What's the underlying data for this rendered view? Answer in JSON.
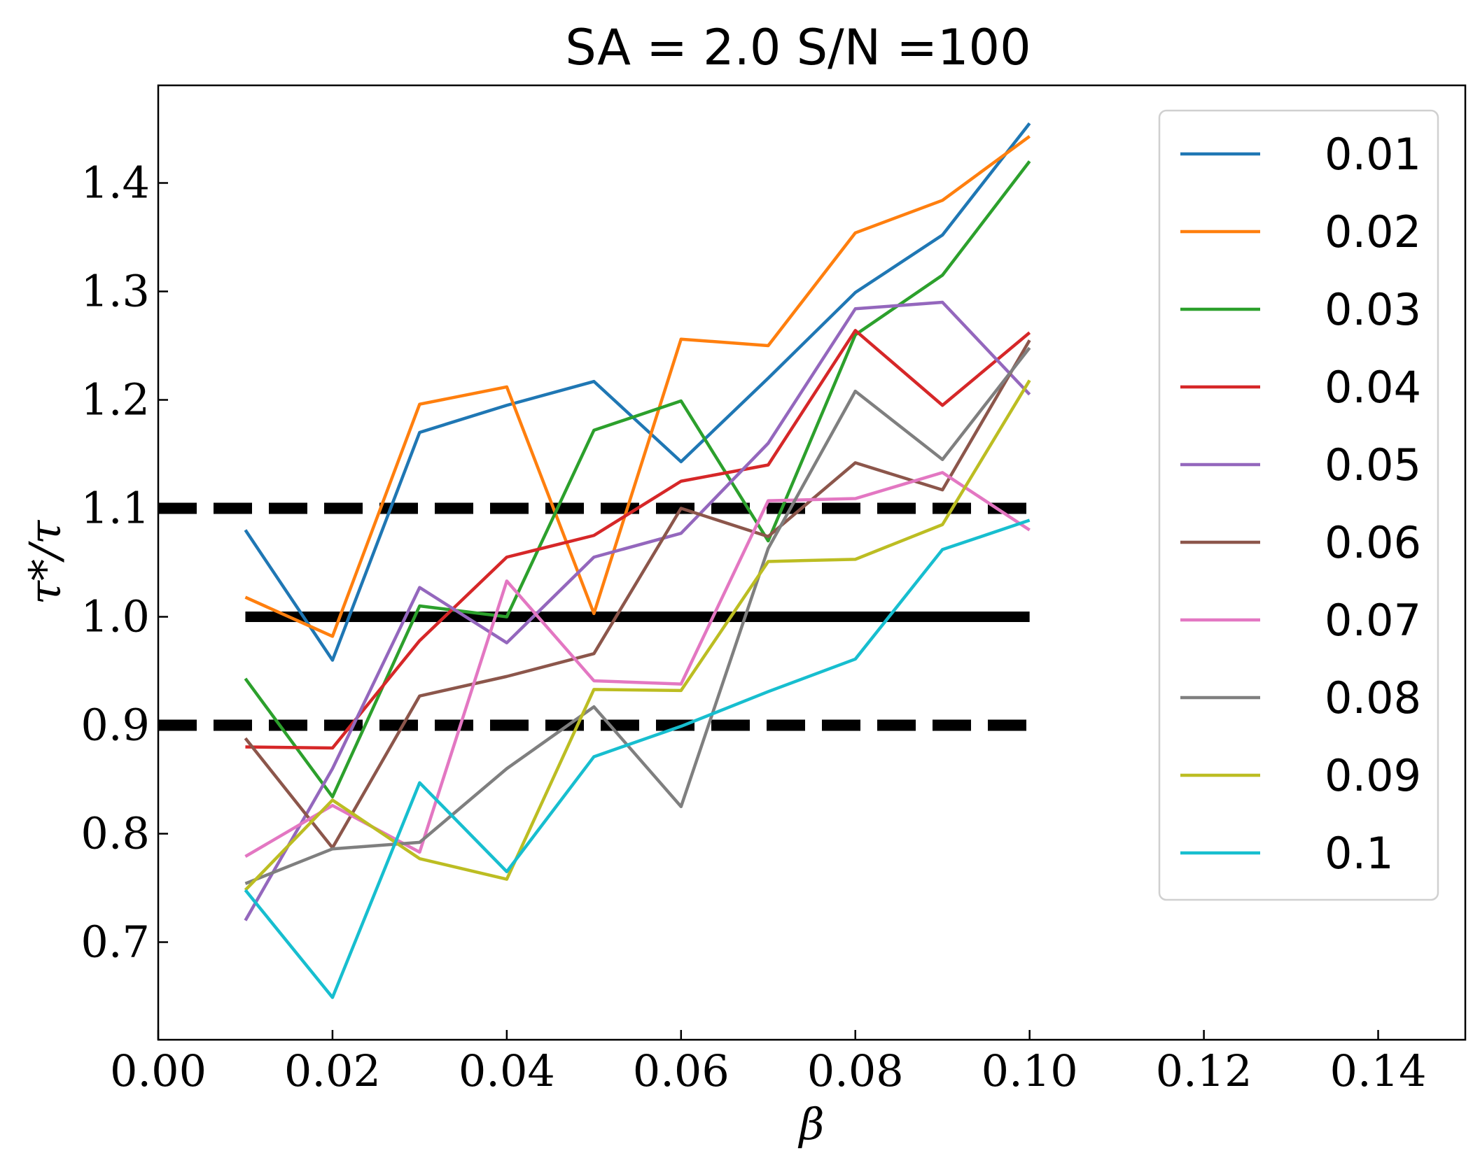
{
  "chart_data": {
    "type": "line",
    "title": "SA = 2.0 S/N =100",
    "xlabel": "β",
    "ylabel": "τ*/τ",
    "xlim": [
      0.0,
      0.15
    ],
    "ylim": [
      0.61,
      1.49
    ],
    "xticks": [
      0.0,
      0.02,
      0.04,
      0.06,
      0.08,
      0.1,
      0.12,
      0.14
    ],
    "xtick_labels": [
      "0.00",
      "0.02",
      "0.04",
      "0.06",
      "0.08",
      "0.10",
      "0.12",
      "0.14"
    ],
    "yticks": [
      0.7,
      0.8,
      0.9,
      1.0,
      1.1,
      1.2,
      1.3,
      1.4
    ],
    "ytick_labels": [
      "0.7",
      "0.8",
      "0.9",
      "1.0",
      "1.1",
      "1.2",
      "1.3",
      "1.4"
    ],
    "grid": false,
    "legend_position": "top-right",
    "x": [
      0.01,
      0.02,
      0.03,
      0.04,
      0.05,
      0.06,
      0.07,
      0.08,
      0.09,
      0.1
    ],
    "series": [
      {
        "name": "0.01",
        "color": "#1f77b4",
        "values": [
          1.08,
          0.96,
          1.17,
          1.195,
          1.217,
          1.143,
          1.22,
          1.299,
          1.352,
          1.455
        ]
      },
      {
        "name": "0.02",
        "color": "#ff7f0e",
        "values": [
          1.018,
          0.982,
          1.196,
          1.212,
          1.003,
          1.256,
          1.25,
          1.354,
          1.384,
          1.443
        ]
      },
      {
        "name": "0.03",
        "color": "#2ca02c",
        "values": [
          0.943,
          0.834,
          1.01,
          1.0,
          1.172,
          1.199,
          1.07,
          1.26,
          1.315,
          1.42
        ]
      },
      {
        "name": "0.04",
        "color": "#d62728",
        "values": [
          0.88,
          0.879,
          0.978,
          1.055,
          1.075,
          1.125,
          1.14,
          1.264,
          1.195,
          1.262
        ]
      },
      {
        "name": "0.05",
        "color": "#9467bd",
        "values": [
          0.72,
          0.86,
          1.027,
          0.976,
          1.055,
          1.077,
          1.16,
          1.284,
          1.29,
          1.205
        ]
      },
      {
        "name": "0.06",
        "color": "#8c564b",
        "values": [
          0.888,
          0.787,
          0.927,
          0.945,
          0.966,
          1.1,
          1.074,
          1.142,
          1.117,
          1.255
        ]
      },
      {
        "name": "0.07",
        "color": "#e377c2",
        "values": [
          0.779,
          0.826,
          0.783,
          1.033,
          0.941,
          0.938,
          1.107,
          1.109,
          1.133,
          1.08
        ]
      },
      {
        "name": "0.08",
        "color": "#7f7f7f",
        "values": [
          0.754,
          0.786,
          0.792,
          0.86,
          0.917,
          0.825,
          1.063,
          1.208,
          1.145,
          1.248
        ]
      },
      {
        "name": "0.09",
        "color": "#bcbd22",
        "values": [
          0.748,
          0.831,
          0.777,
          0.758,
          0.933,
          0.932,
          1.051,
          1.053,
          1.085,
          1.218
        ]
      },
      {
        "name": "0.1",
        "color": "#17becf",
        "values": [
          0.748,
          0.649,
          0.847,
          0.765,
          0.871,
          0.899,
          0.931,
          0.961,
          1.062,
          1.089
        ]
      }
    ],
    "reference_lines": [
      {
        "y": 1.0,
        "style": "solid",
        "color": "#000000",
        "x_range": [
          0.01,
          0.1
        ]
      },
      {
        "y": 1.1,
        "style": "dashed",
        "color": "#000000",
        "x_range": [
          0.0,
          0.1
        ]
      },
      {
        "y": 0.9,
        "style": "dashed",
        "color": "#000000",
        "x_range": [
          0.0,
          0.1
        ]
      }
    ]
  }
}
